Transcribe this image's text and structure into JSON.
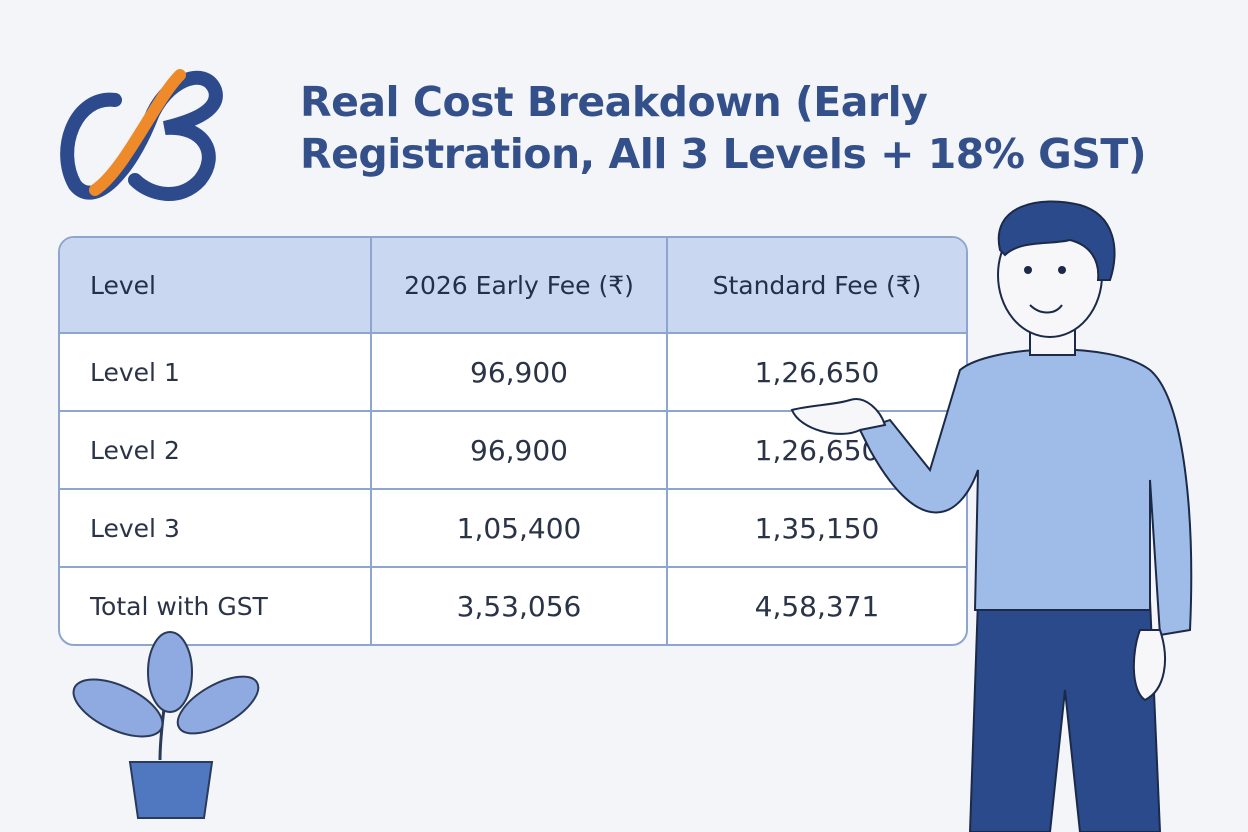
{
  "header": {
    "title": [
      "Real Cost Breakdown (Early",
      "Registration, All 3 Levels +  18% GST)"
    ]
  },
  "table": {
    "headers": [
      "Level",
      "2026 Early Fee (₹)",
      "Standard Fee (₹)"
    ],
    "rows": [
      [
        "Level 1",
        "96,900",
        "1,26,650"
      ],
      [
        "Level 2",
        "96,900",
        "1,26,650"
      ],
      [
        "Level 3",
        "1,05,400",
        "1,35,150"
      ],
      [
        "Total with GST",
        "3,53,056",
        "4,58,371"
      ]
    ]
  }
}
